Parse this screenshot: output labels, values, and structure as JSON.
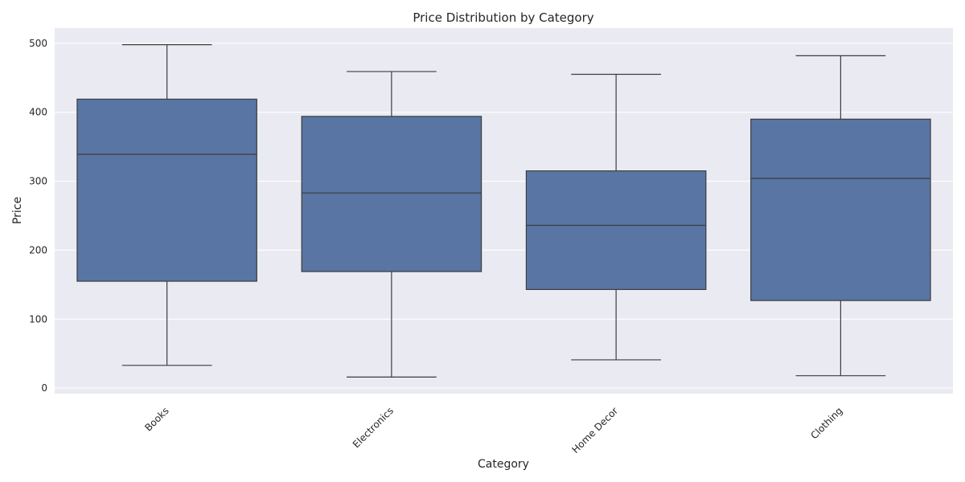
{
  "chart_data": {
    "type": "box",
    "title": "Price Distribution by Category",
    "xlabel": "Category",
    "ylabel": "Price",
    "ylim": [
      -8,
      522
    ],
    "yticks": [
      0,
      100,
      200,
      300,
      400,
      500
    ],
    "grid": true,
    "categories": [
      "Books",
      "Electronics",
      "Home Decor",
      "Clothing"
    ],
    "boxes": [
      {
        "category": "Books",
        "whisker_low": 33,
        "q1": 155,
        "median": 339,
        "q3": 419,
        "whisker_high": 498
      },
      {
        "category": "Electronics",
        "whisker_low": 16,
        "q1": 169,
        "median": 283,
        "q3": 394,
        "whisker_high": 459
      },
      {
        "category": "Home Decor",
        "whisker_low": 41,
        "q1": 143,
        "median": 236,
        "q3": 315,
        "whisker_high": 455
      },
      {
        "category": "Clothing",
        "whisker_low": 18,
        "q1": 127,
        "median": 304,
        "q3": 390,
        "whisker_high": 482
      }
    ],
    "colors": {
      "background": "#eaeaf2",
      "box_fill": "#5875a4",
      "line": "#3d3d3d",
      "grid": "#ffffff"
    }
  }
}
